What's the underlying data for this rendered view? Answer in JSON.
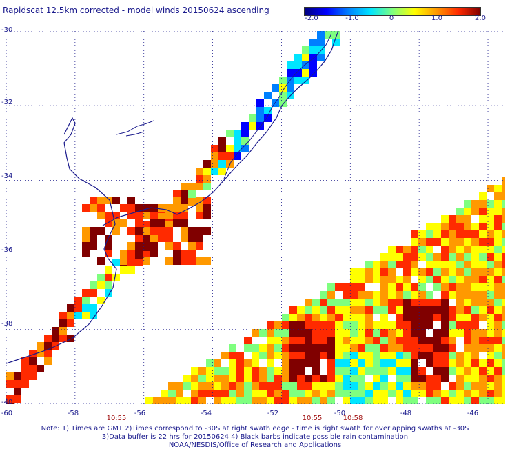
{
  "title": "Rapidscat 12.5km corrected - model winds 20150624 ascending",
  "colorbar": {
    "ticks": [
      "-2.0",
      "-1.0",
      "0",
      "1.0",
      "2.0"
    ],
    "tick_values": [
      -2.0,
      -1.0,
      0,
      1.0,
      2.0
    ],
    "colors": [
      "#00007f",
      "#0000ff",
      "#0080ff",
      "#00e5ff",
      "#7fff7f",
      "#ffff00",
      "#ff9900",
      "#ff2a00",
      "#800000"
    ]
  },
  "map": {
    "lon_labels": [
      "-60",
      "-58",
      "-56",
      "-54",
      "-52",
      "-50",
      "-48",
      "-46"
    ],
    "lon_values": [
      -60,
      -58,
      -56,
      -54,
      -52,
      -50,
      -48,
      -46
    ],
    "lat_labels": [
      "-30",
      "-32",
      "-34",
      "-36",
      "-38",
      "-40"
    ],
    "lat_values": [
      -30,
      -32,
      -34,
      -36,
      -38,
      -40
    ],
    "lon_range": [
      -60,
      -45.5
    ],
    "lat_range": [
      -40,
      -30
    ],
    "grid": "dotted",
    "coastline_color": "#1a1a8c"
  },
  "swath_times": [
    "10:55",
    "10:55",
    "10:58"
  ],
  "notes": [
    "Note: 1) Times are GMT 2)Times correspond to -30S at right swath edge - time is right swath for overlapping swaths at -30S",
    "3)Data buffer is 22 hrs for 20150624 4) Black barbs indicate possible rain contamination",
    "NOAA/NESDIS/Office of Research and Applications"
  ]
}
